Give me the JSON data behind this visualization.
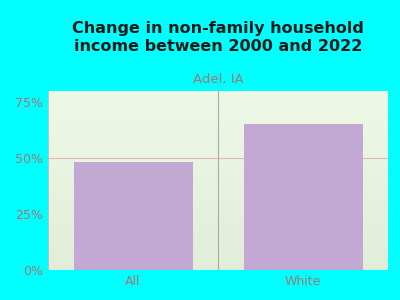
{
  "categories": [
    "All",
    "White"
  ],
  "values": [
    48,
    65
  ],
  "bar_color": "#C4A8D4",
  "title": "Change in non-family household\nincome between 2000 and 2022",
  "subtitle": "Adel, IA",
  "subtitle_color": "#a07878",
  "title_color": "#1a1a1a",
  "title_fontsize": 11.5,
  "subtitle_fontsize": 9.5,
  "ylim": [
    0,
    80
  ],
  "yticks": [
    0,
    25,
    50,
    75
  ],
  "ytick_labels": [
    "0%",
    "25%",
    "50%",
    "75%"
  ],
  "background_outer": "#00ffff",
  "tick_label_color": "#a07878",
  "tick_label_fontsize": 9,
  "grid_line_color": "#e8a0a0",
  "grid_line_alpha": 0.7,
  "bar_width": 0.7
}
